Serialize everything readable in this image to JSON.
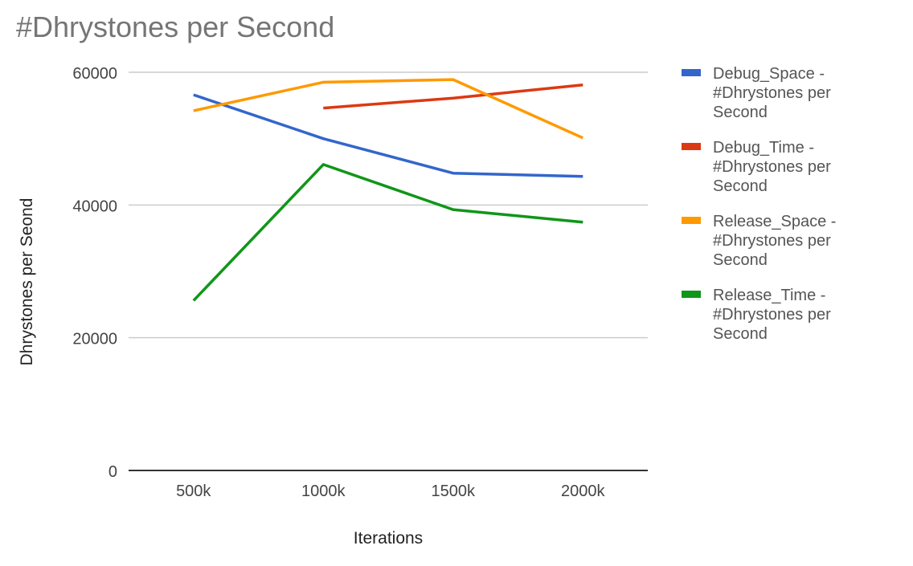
{
  "chart_data": {
    "type": "line",
    "title": "#Dhrystones per Second",
    "xlabel": "Iterations",
    "ylabel": "Dhrystones per Seond",
    "categories": [
      "500k",
      "1000k",
      "1500k",
      "2000k"
    ],
    "ylim": [
      0,
      60000
    ],
    "yticks": [
      0,
      20000,
      40000,
      60000
    ],
    "ytick_labels": [
      "0",
      "20000",
      "40000",
      "60000"
    ],
    "grid": true,
    "legend_position": "right",
    "series": [
      {
        "name": "Debug_Space - #Dhrystones per Second",
        "legend_lines": [
          "Debug_Space -",
          "#Dhrystones per",
          "Second"
        ],
        "color": "#3366cc",
        "values": [
          56600,
          50000,
          44800,
          44300
        ]
      },
      {
        "name": "Debug_Time - #Dhrystones per Second",
        "legend_lines": [
          "Debug_Time -",
          "#Dhrystones per",
          "Second"
        ],
        "color": "#dc3912",
        "values": [
          null,
          54600,
          56100,
          58100
        ]
      },
      {
        "name": "Release_Space - #Dhrystones per Second",
        "legend_lines": [
          "Release_Space -",
          "#Dhrystones per",
          "Second"
        ],
        "color": "#ff9900",
        "values": [
          54200,
          58500,
          58900,
          50100
        ]
      },
      {
        "name": "Release_Time - #Dhrystones per Second",
        "legend_lines": [
          "Release_Time -",
          "#Dhrystones per",
          "Second"
        ],
        "color": "#109618",
        "values": [
          25600,
          46100,
          39300,
          37400
        ]
      }
    ]
  }
}
